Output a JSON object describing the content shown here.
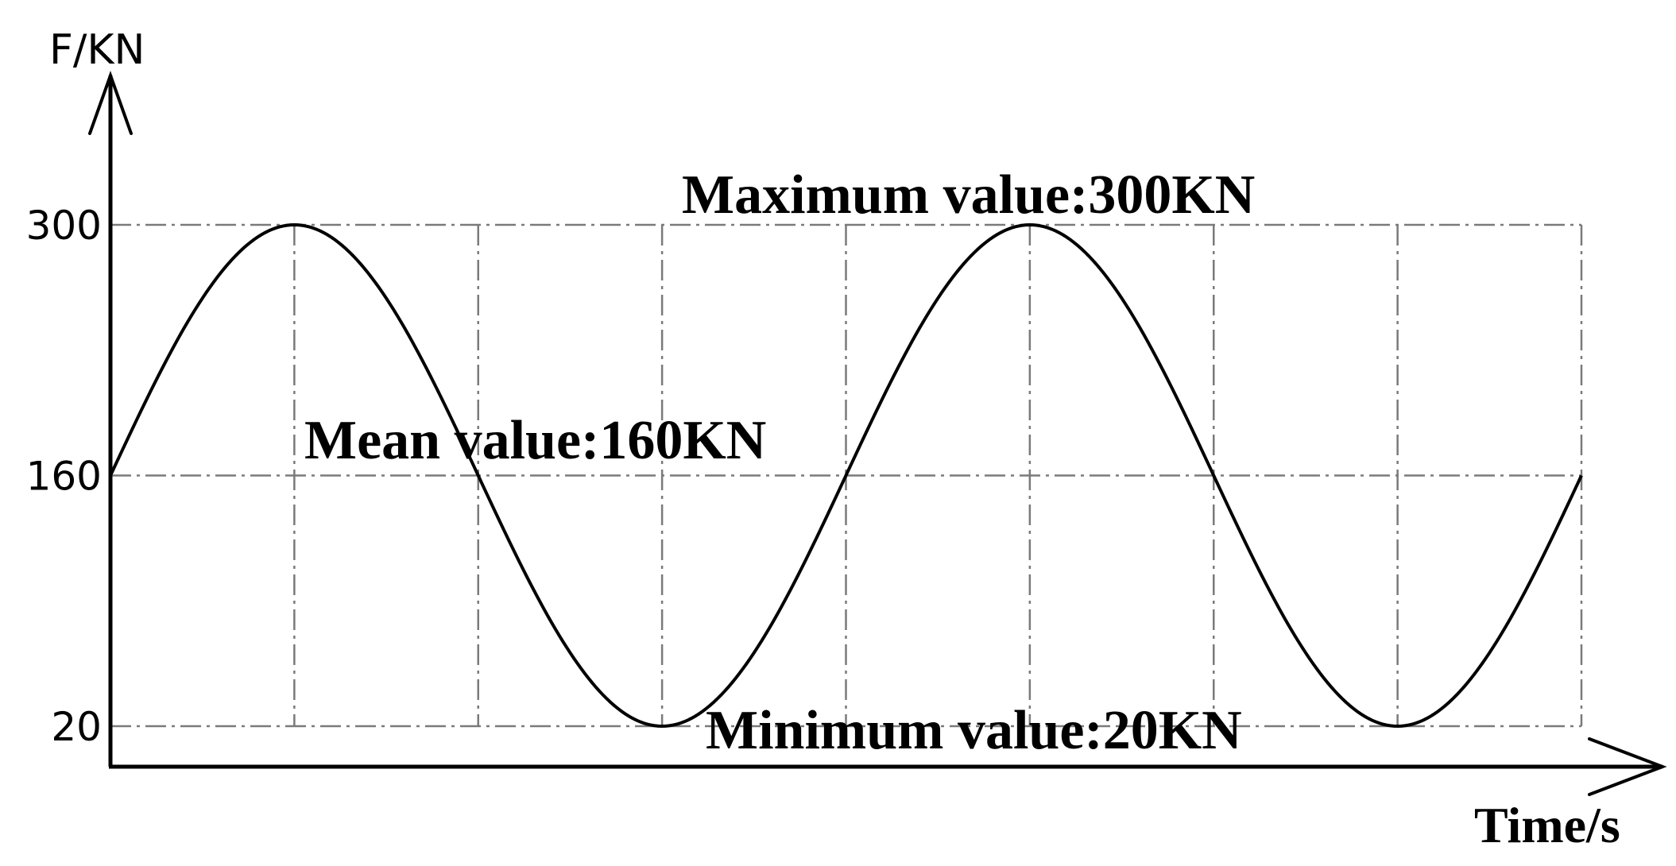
{
  "chart_data": {
    "type": "line",
    "ylabel": "F/KN",
    "xlabel": "Time/s",
    "yticks": [
      300,
      160,
      20
    ],
    "ylim": [
      20,
      300
    ],
    "grid": true,
    "series": [
      {
        "function": "sine",
        "mean": 160,
        "amplitude": 140,
        "periods": 2,
        "start_phase": "mean-rising"
      }
    ],
    "annotations": {
      "max": "Maximum value:300KN",
      "mean": "Mean value:160KN",
      "min": "Minimum value:20KN"
    }
  }
}
